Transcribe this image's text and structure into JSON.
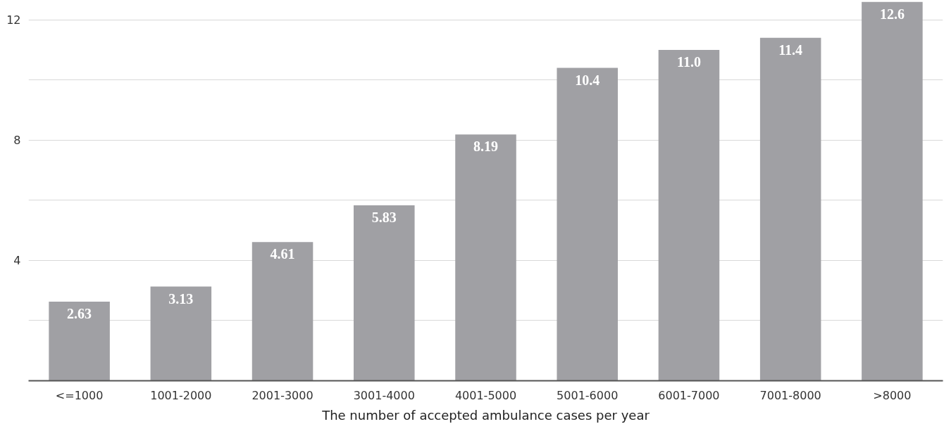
{
  "chart_data": {
    "type": "bar",
    "xlabel": "The number of accepted ambulance cases per year",
    "categories": [
      "<=1000",
      "1001-2000",
      "2001-3000",
      "3001-4000",
      "4001-5000",
      "5001-6000",
      "6001-7000",
      "7001-8000",
      ">8000"
    ],
    "values": [
      2.63,
      3.13,
      4.61,
      5.83,
      8.19,
      10.4,
      11.0,
      11.4,
      12.6
    ],
    "color": "#a0a0a4",
    "ylim": [
      0,
      12.6
    ],
    "yticks": [
      {
        "value": 2,
        "label": null
      },
      4,
      {
        "value": 6,
        "label": null
      },
      8,
      {
        "value": 10,
        "label": null
      },
      12
    ],
    "grid": "y",
    "value_labels": [
      "2.63",
      "3.13",
      "4.61",
      "5.83",
      "8.19",
      "10.4",
      "11.0",
      "11.4",
      "12.6"
    ]
  }
}
